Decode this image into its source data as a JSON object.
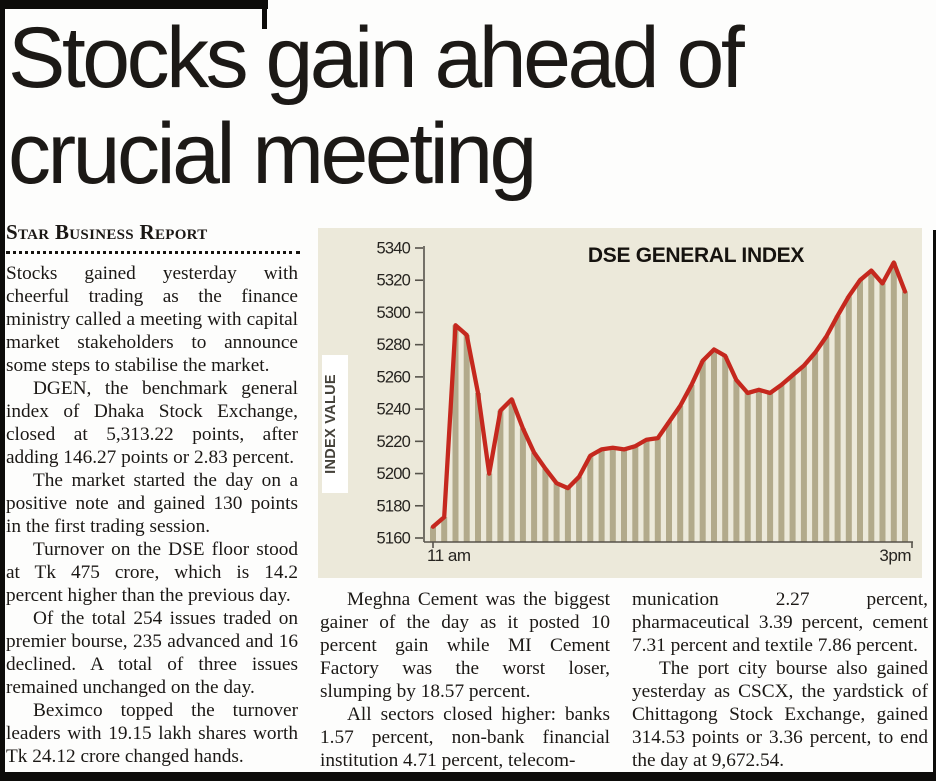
{
  "masthead": {
    "headline_lines": [
      "Stocks gain ahead of",
      "crucial meeting"
    ],
    "byline": "Star Business Report"
  },
  "article": {
    "columns": [
      {
        "id": "col1",
        "paragraphs": [
          {
            "indent": false,
            "text": "Stocks gained yesterday with cheerful trading as the finance ministry called a meeting with capital market stakeholders to announce some steps to stabilise the market."
          },
          {
            "indent": true,
            "text": "DGEN, the benchmark general index of Dhaka Stock Exchange, closed at 5,313.22 points, after adding 146.27 points or 2.83 percent."
          },
          {
            "indent": true,
            "text": "The market started the day on a positive note and gained 130 points in the first trading session."
          },
          {
            "indent": true,
            "text": "Turnover on the DSE floor stood at Tk 475 crore, which is 14.2 percent higher than the previous day."
          },
          {
            "indent": true,
            "text": "Of the total 254 issues traded on premier bourse, 235 advanced and 16 declined. A total of three issues remained unchanged on the day."
          },
          {
            "indent": true,
            "text": "Beximco topped the turnover leaders with 19.15 lakh shares worth Tk 24.12 crore changed hands."
          }
        ]
      },
      {
        "id": "col2",
        "paragraphs": [
          {
            "indent": true,
            "text": "Meghna Cement was the biggest gainer of the day as it posted 10 percent gain while MI Cement Factory was the worst loser, slumping by 18.57 percent."
          },
          {
            "indent": true,
            "text": "All sectors closed higher: banks 1.57 percent, non-bank financial institution 4.71 percent, telecom-"
          }
        ]
      },
      {
        "id": "col3",
        "paragraphs": [
          {
            "indent": false,
            "text": "munication 2.27 percent, pharmaceutical 3.39 percent, cement 7.31 percent and textile 7.86 percent."
          },
          {
            "indent": true,
            "text": "The port city bourse also gained yesterday as CSCX, the yardstick of Chittagong Stock Exchange, gained 314.53 points or 3.36 percent, to end the day at 9,672.54."
          }
        ]
      }
    ]
  },
  "chart_data": {
    "type": "area",
    "title": "DSE GENERAL INDEX",
    "ylabel": "INDEX VALUE",
    "xlabel": "",
    "x_tick_labels": [
      "11 am",
      "3pm"
    ],
    "y_ticks": [
      5340,
      5320,
      5300,
      5280,
      5260,
      5240,
      5220,
      5200,
      5180,
      5160
    ],
    "ylim": [
      5160,
      5340
    ],
    "grid": false,
    "legend": "none",
    "values": [
      5167,
      5173,
      5292,
      5286,
      5250,
      5200,
      5239,
      5246,
      5228,
      5213,
      5203,
      5194,
      5191,
      5198,
      5211,
      5215,
      5216,
      5215,
      5217,
      5221,
      5222,
      5232,
      5242,
      5255,
      5270,
      5277,
      5273,
      5258,
      5250,
      5252,
      5250,
      5255,
      5261,
      5267,
      5275,
      5285,
      5298,
      5310,
      5320,
      5326,
      5318,
      5331,
      5313
    ],
    "colors": {
      "line": "#c5281e",
      "bars": "#b2aa8b",
      "chart_bg": "#ece9da",
      "axis": "#56534b",
      "text": "#262420",
      "title": "#16130f"
    }
  }
}
